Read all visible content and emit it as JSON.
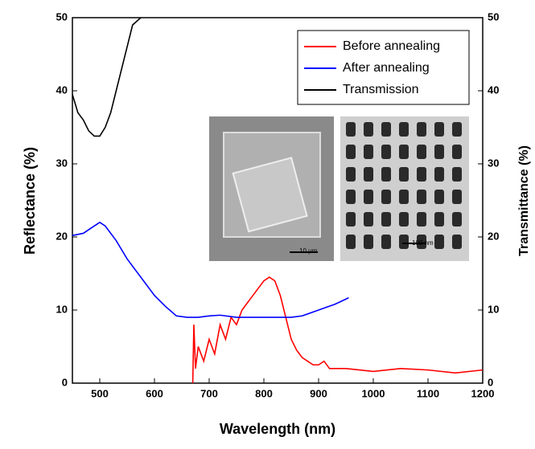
{
  "chart_data": {
    "type": "line",
    "x_label": "Wavelength (nm)",
    "y_label": "Reflectance (%)",
    "y2_label": "Transmittance (%)",
    "xlim": [
      450,
      1200
    ],
    "xticks": [
      500,
      600,
      700,
      800,
      900,
      1000,
      1100,
      1200
    ],
    "ylim": [
      0,
      50
    ],
    "yticks": [
      0,
      10,
      20,
      30,
      40,
      50
    ],
    "y2lim": [
      0,
      50
    ],
    "y2ticks": [
      0,
      10,
      20,
      30,
      40,
      50
    ],
    "legend": "upper right",
    "series": [
      {
        "name": "Before annealing",
        "color": "#ff0000",
        "x": [
          670,
          672,
          675,
          680,
          690,
          700,
          710,
          720,
          730,
          740,
          750,
          760,
          770,
          780,
          790,
          800,
          810,
          820,
          830,
          840,
          850,
          860,
          870,
          880,
          890,
          900,
          910,
          920,
          950,
          1000,
          1050,
          1100,
          1150,
          1200
        ],
        "values": [
          0,
          8,
          2,
          5,
          3,
          6,
          4,
          8,
          6,
          9,
          8,
          10,
          11,
          12,
          13,
          14,
          14.5,
          14,
          12,
          9,
          6,
          4.5,
          3.5,
          3,
          2.5,
          2.5,
          3,
          2,
          2,
          1.6,
          2,
          1.8,
          1.4,
          1.8
        ]
      },
      {
        "name": "After annealing",
        "color": "#0000ff",
        "x": [
          450,
          470,
          490,
          500,
          510,
          530,
          550,
          580,
          600,
          620,
          640,
          660,
          680,
          700,
          720,
          750,
          800,
          850,
          870,
          900,
          930,
          950,
          955
        ],
        "values": [
          20.2,
          20.5,
          21.5,
          22,
          21.5,
          19.5,
          17,
          14,
          12,
          10.5,
          9.2,
          9,
          9,
          9.2,
          9.3,
          9,
          9,
          9,
          9.2,
          10,
          10.8,
          11.5,
          11.7
        ]
      },
      {
        "name": "Transmission",
        "color": "#000000",
        "axis": "y2",
        "x": [
          450,
          460,
          470,
          480,
          490,
          500,
          510,
          520,
          530,
          540,
          550,
          560,
          575
        ],
        "values": [
          39.5,
          37,
          36,
          34.5,
          33.8,
          33.8,
          35,
          37,
          40,
          43,
          46,
          49,
          50
        ]
      }
    ],
    "insets": [
      {
        "scale_label": "10 μm"
      },
      {
        "scale_label": "100 nm"
      }
    ]
  }
}
